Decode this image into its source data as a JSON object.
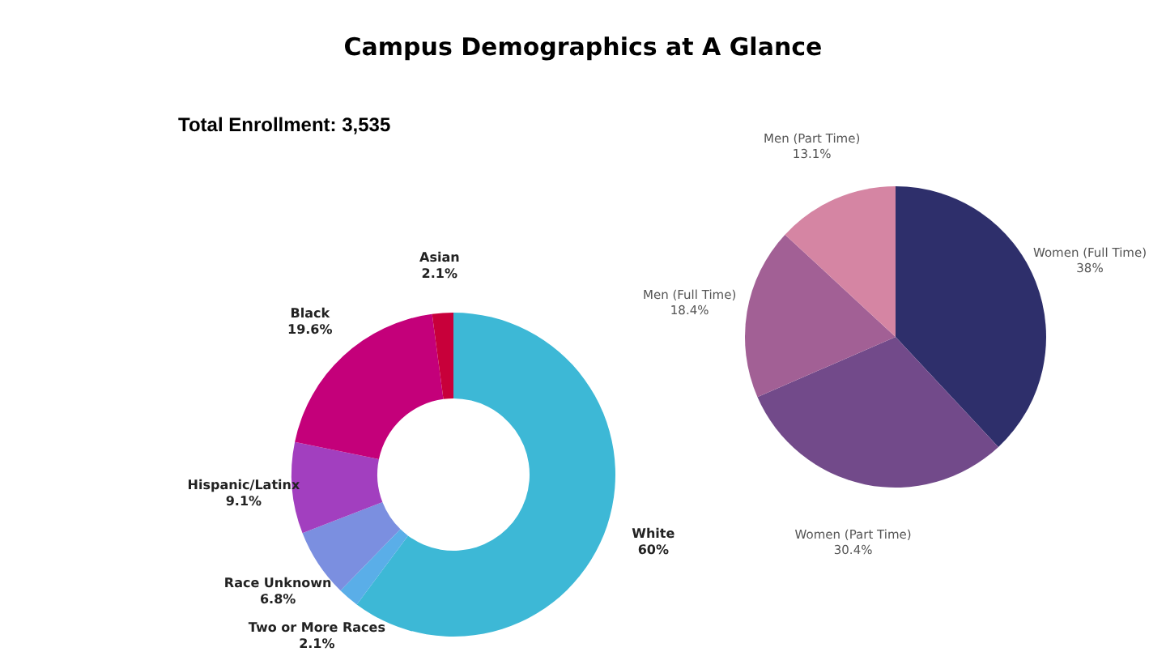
{
  "chart_data": [
    {
      "type": "donut",
      "title": "Campus Demographics at A Glance",
      "subtitle": "Total Enrollment: 3,535",
      "categories": [
        "White",
        "Two or More Races",
        "Race Unknown",
        "Hispanic/Latinx",
        "Black",
        "Asian"
      ],
      "values": [
        60,
        2.1,
        6.8,
        9.1,
        19.6,
        2.1
      ],
      "value_labels": [
        "60%",
        "2.1%",
        "6.8%",
        "9.1%",
        "19.6%",
        "2.1%"
      ],
      "colors": [
        "#3db8d6",
        "#5aaee8",
        "#7b8fe0",
        "#a23fbf",
        "#c4007a",
        "#c8003a"
      ]
    },
    {
      "type": "pie",
      "categories": [
        "Women (Full Time)",
        "Women (Part Time)",
        "Men (Full Time)",
        "Men (Part Time)"
      ],
      "values": [
        38,
        30.4,
        18.4,
        13.1
      ],
      "value_labels": [
        "38%",
        "30.4%",
        "18.4%",
        "13.1%"
      ],
      "colors": [
        "#2e2f6b",
        "#724a8a",
        "#a26095",
        "#d585a3"
      ]
    }
  ]
}
